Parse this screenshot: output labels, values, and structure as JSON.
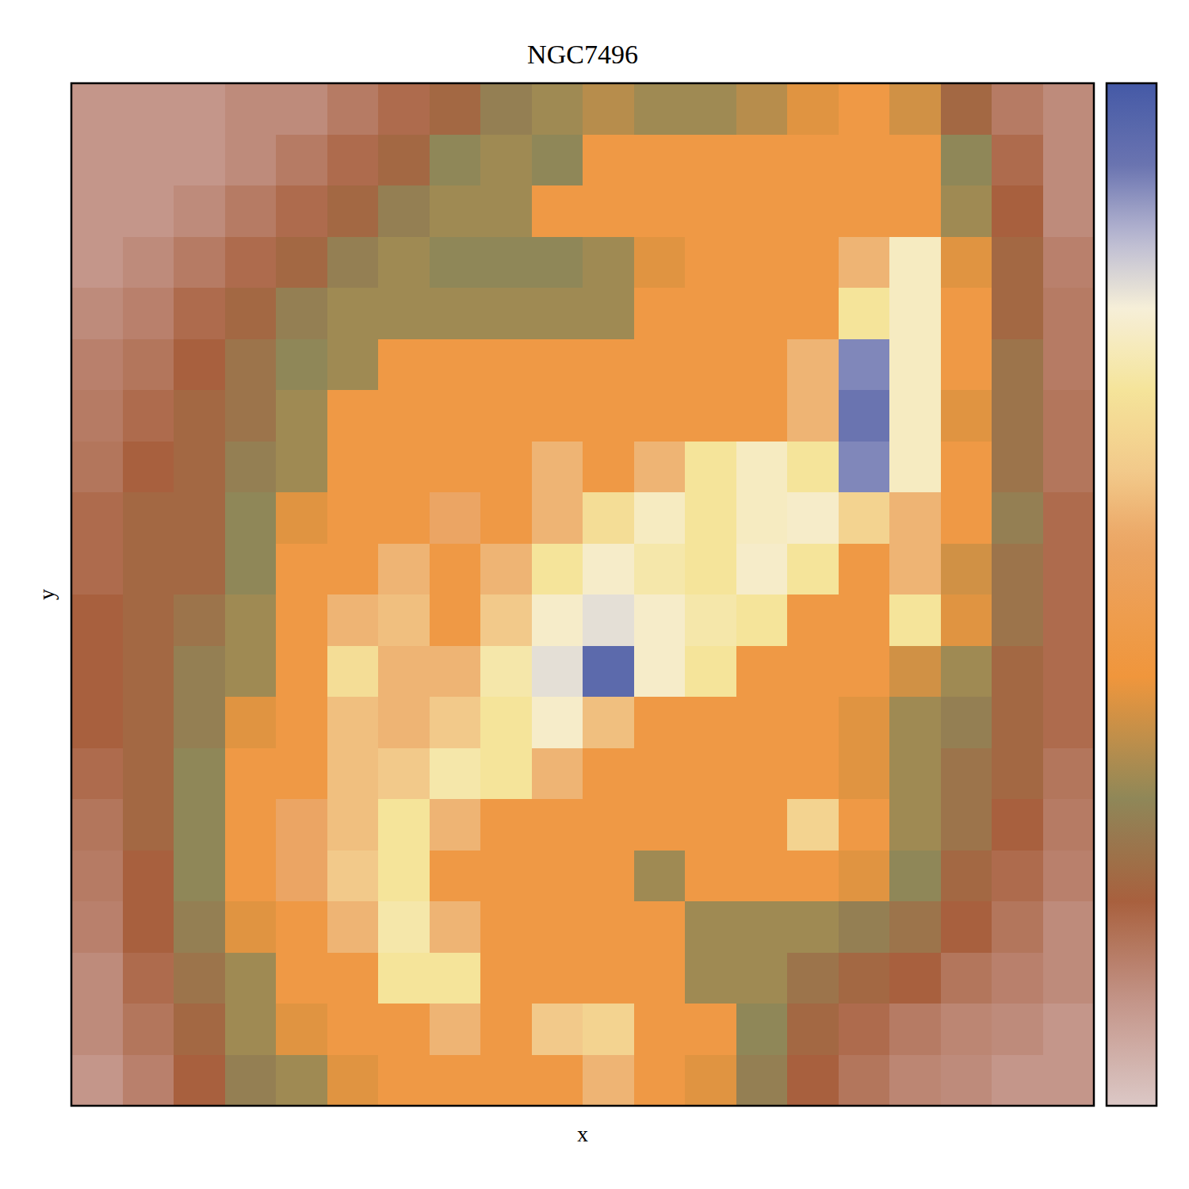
{
  "chart_data": {
    "type": "heatmap",
    "title": "NGC7496",
    "x_label": "x",
    "y_label": "y",
    "tick_labels": false,
    "colorbar_range": [
      0,
      100
    ],
    "cells": [
      [
        10,
        10,
        10,
        12,
        12,
        15,
        18,
        22,
        28,
        32,
        35,
        32,
        32,
        35,
        40,
        45,
        38,
        22,
        15,
        12
      ],
      [
        10,
        10,
        10,
        12,
        15,
        18,
        22,
        30,
        32,
        30,
        45,
        45,
        45,
        45,
        45,
        45,
        45,
        30,
        18,
        12
      ],
      [
        10,
        10,
        12,
        15,
        18,
        22,
        28,
        32,
        32,
        45,
        45,
        45,
        45,
        45,
        45,
        45,
        45,
        32,
        20,
        12
      ],
      [
        10,
        12,
        15,
        18,
        22,
        28,
        32,
        30,
        30,
        30,
        32,
        40,
        45,
        45,
        45,
        58,
        75,
        40,
        22,
        14
      ],
      [
        12,
        14,
        18,
        22,
        28,
        32,
        32,
        32,
        32,
        32,
        32,
        45,
        45,
        45,
        45,
        70,
        75,
        45,
        22,
        15
      ],
      [
        14,
        16,
        20,
        25,
        30,
        32,
        45,
        45,
        45,
        45,
        45,
        45,
        45,
        45,
        58,
        90,
        75,
        45,
        25,
        15
      ],
      [
        15,
        18,
        22,
        25,
        32,
        45,
        45,
        45,
        45,
        45,
        45,
        45,
        45,
        45,
        58,
        92,
        75,
        40,
        25,
        16
      ],
      [
        16,
        20,
        22,
        28,
        32,
        45,
        45,
        45,
        45,
        58,
        45,
        58,
        70,
        75,
        70,
        90,
        75,
        45,
        25,
        16
      ],
      [
        18,
        22,
        22,
        30,
        40,
        45,
        45,
        55,
        45,
        58,
        68,
        75,
        70,
        75,
        76,
        65,
        58,
        45,
        28,
        18
      ],
      [
        18,
        22,
        22,
        30,
        45,
        45,
        58,
        45,
        58,
        70,
        76,
        72,
        70,
        76,
        70,
        45,
        58,
        38,
        25,
        18
      ],
      [
        20,
        22,
        25,
        32,
        45,
        58,
        60,
        45,
        62,
        76,
        80,
        76,
        72,
        70,
        45,
        45,
        70,
        40,
        25,
        18
      ],
      [
        20,
        22,
        28,
        32,
        45,
        68,
        58,
        58,
        72,
        80,
        95,
        76,
        70,
        45,
        45,
        45,
        38,
        32,
        22,
        18
      ],
      [
        20,
        22,
        28,
        40,
        45,
        60,
        58,
        62,
        70,
        76,
        60,
        45,
        45,
        45,
        45,
        40,
        32,
        28,
        22,
        18
      ],
      [
        18,
        22,
        30,
        45,
        45,
        60,
        62,
        72,
        70,
        58,
        45,
        45,
        45,
        45,
        45,
        40,
        32,
        25,
        22,
        16
      ],
      [
        16,
        22,
        30,
        45,
        55,
        60,
        70,
        58,
        45,
        45,
        45,
        45,
        45,
        45,
        65,
        45,
        32,
        25,
        20,
        15
      ],
      [
        15,
        20,
        30,
        45,
        55,
        62,
        70,
        45,
        45,
        45,
        45,
        32,
        45,
        45,
        45,
        40,
        30,
        22,
        18,
        14
      ],
      [
        14,
        20,
        28,
        40,
        45,
        58,
        72,
        58,
        45,
        45,
        45,
        45,
        32,
        32,
        32,
        28,
        25,
        20,
        16,
        12
      ],
      [
        12,
        18,
        25,
        32,
        45,
        45,
        70,
        70,
        45,
        45,
        45,
        45,
        32,
        32,
        25,
        22,
        20,
        16,
        14,
        12
      ],
      [
        12,
        16,
        22,
        32,
        40,
        45,
        45,
        58,
        45,
        62,
        65,
        45,
        45,
        30,
        22,
        18,
        15,
        13,
        12,
        10
      ],
      [
        10,
        14,
        20,
        28,
        32,
        40,
        45,
        45,
        45,
        45,
        58,
        45,
        40,
        28,
        20,
        16,
        13,
        12,
        10,
        10
      ]
    ]
  }
}
